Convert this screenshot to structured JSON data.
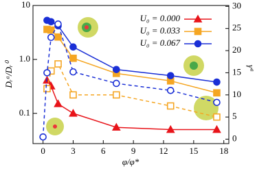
{
  "chart_data": {
    "type": "line",
    "x_label": "φ/φ*",
    "y_label": "Dᵣᵃ/Dᵣ⁰",
    "y2_label": "γᵃ",
    "xlim": [
      -1,
      18.5
    ],
    "xticks": [
      0,
      3,
      6,
      9,
      12,
      15,
      18
    ],
    "ylim": [
      0.0275,
      10
    ],
    "yticks": [
      0.1,
      {
        "value": 1,
        "label": "1.0"
      },
      10
    ],
    "log_y": true,
    "y2lim": [
      -1,
      30.2
    ],
    "y2ticks": [
      0,
      5,
      10,
      15,
      20,
      25,
      30
    ],
    "legend": "top-right",
    "series": [
      {
        "name": "U₀ = 0.000",
        "color": "#e8141a",
        "marker": "triangle",
        "filled": true,
        "axis": "y",
        "x": [
          0.4,
          0.8,
          1.5,
          3,
          7.3,
          12.7,
          17.3
        ],
        "values": [
          0.41,
          0.32,
          0.15,
          0.1,
          0.055,
          0.05,
          0.05
        ]
      },
      {
        "name": "U₀ = 0.033",
        "color": "#f5a623",
        "marker": "square",
        "filled": true,
        "axis": "y",
        "x": [
          0.4,
          0.8,
          1.5,
          3,
          7.3,
          12.7,
          17.3
        ],
        "values": [
          3.6,
          3.5,
          2.6,
          1.05,
          0.55,
          0.4,
          0.24
        ]
      },
      {
        "name": "U₀ = 0.067",
        "color": "#1a2fd6",
        "marker": "circle",
        "filled": true,
        "axis": "y",
        "x": [
          0.4,
          0.8,
          1.5,
          3,
          7.3,
          12.7,
          17.3
        ],
        "values": [
          5.3,
          5.0,
          4.2,
          1.7,
          0.65,
          0.5,
          0.38
        ]
      },
      {
        "color": "#f5a623",
        "marker": "square",
        "filled": false,
        "dashed": true,
        "axis": "y2",
        "x": [
          0.4,
          0.8,
          1.5,
          3,
          7.3,
          12.7,
          17.3
        ],
        "values": [
          11.4,
          15.4,
          17,
          10,
          10,
          7.5,
          5
        ]
      },
      {
        "color": "#1a2fd6",
        "marker": "circle",
        "filled": false,
        "dashed": true,
        "axis": "y2",
        "x": [
          0,
          0.4,
          0.8,
          1.5,
          3,
          7.3,
          12.7,
          17.3
        ],
        "values": [
          0.5,
          15,
          23,
          26,
          15.2,
          12.6,
          11,
          8.3
        ]
      }
    ]
  }
}
